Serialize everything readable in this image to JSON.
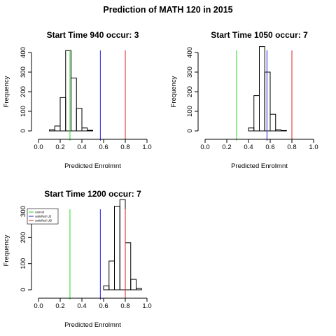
{
  "title": "Prediction of MATH 120 in 2015",
  "chart_data": [
    {
      "type": "histogram",
      "title": "Start Time 940 occur: 3",
      "xlabel": "Predicted Enrolmnt",
      "ylabel": "Frequency",
      "xlim": [
        0.0,
        1.0
      ],
      "ylim": [
        0,
        400
      ],
      "x_ticks": [
        "0.0",
        "0.2",
        "0.4",
        "0.6",
        "0.8",
        "1.0"
      ],
      "y_ticks": [
        "0",
        "100",
        "200",
        "300",
        "400"
      ],
      "bin_width": 0.05,
      "bin_starts": [
        0.1,
        0.15,
        0.2,
        0.25,
        0.3,
        0.35,
        0.4,
        0.45
      ],
      "counts": [
        5,
        25,
        170,
        410,
        270,
        115,
        15,
        3
      ],
      "vlines": [
        {
          "name": "cancel",
          "x": 0.29,
          "color": "#22dd22"
        },
        {
          "name": "satisfied LB",
          "x": 0.57,
          "color": "#2222dd"
        },
        {
          "name": "satisfied UB",
          "x": 0.8,
          "color": "#dd2222"
        }
      ],
      "legend": null
    },
    {
      "type": "histogram",
      "title": "Start Time 1050 occur: 7",
      "xlabel": "Predicted Enrolmnt",
      "ylabel": "Frequency",
      "xlim": [
        0.0,
        1.0
      ],
      "ylim": [
        0,
        400
      ],
      "x_ticks": [
        "0.0",
        "0.2",
        "0.4",
        "0.6",
        "0.8",
        "1.0"
      ],
      "y_ticks": [
        "0",
        "100",
        "200",
        "300",
        "400"
      ],
      "bin_width": 0.05,
      "bin_starts": [
        0.4,
        0.45,
        0.5,
        0.55,
        0.6,
        0.65,
        0.7
      ],
      "counts": [
        15,
        180,
        430,
        300,
        85,
        5,
        2
      ],
      "vlines": [
        {
          "name": "cancel",
          "x": 0.29,
          "color": "#22dd22"
        },
        {
          "name": "satisfied LB",
          "x": 0.57,
          "color": "#2222dd"
        },
        {
          "name": "satisfied UB",
          "x": 0.8,
          "color": "#dd2222"
        }
      ],
      "legend": null
    },
    {
      "type": "histogram",
      "title": "Start Time 1200 occur: 7",
      "xlabel": "Predicted Enrolmnt",
      "ylabel": "Frequency",
      "xlim": [
        0.0,
        1.0
      ],
      "ylim": [
        0,
        300
      ],
      "x_ticks": [
        "0.0",
        "0.2",
        "0.4",
        "0.6",
        "0.8",
        "1.0"
      ],
      "y_ticks": [
        "0",
        "100",
        "200",
        "300"
      ],
      "bin_width": 0.05,
      "bin_starts": [
        0.6,
        0.65,
        0.7,
        0.75,
        0.8,
        0.85,
        0.9
      ],
      "counts": [
        15,
        110,
        320,
        345,
        180,
        40,
        5
      ],
      "vlines": [
        {
          "name": "cancel",
          "x": 0.29,
          "color": "#22dd22"
        },
        {
          "name": "satisfied LB",
          "x": 0.57,
          "color": "#2222dd"
        },
        {
          "name": "satisfied UB",
          "x": 0.8,
          "color": "#dd2222"
        }
      ],
      "legend": {
        "placement": "top-left",
        "entries": [
          {
            "label": "cancel",
            "color": "#22dd22"
          },
          {
            "label": "satisfied LB",
            "color": "#2222dd"
          },
          {
            "label": "satisfied UB",
            "color": "#dd2222"
          }
        ]
      }
    }
  ]
}
